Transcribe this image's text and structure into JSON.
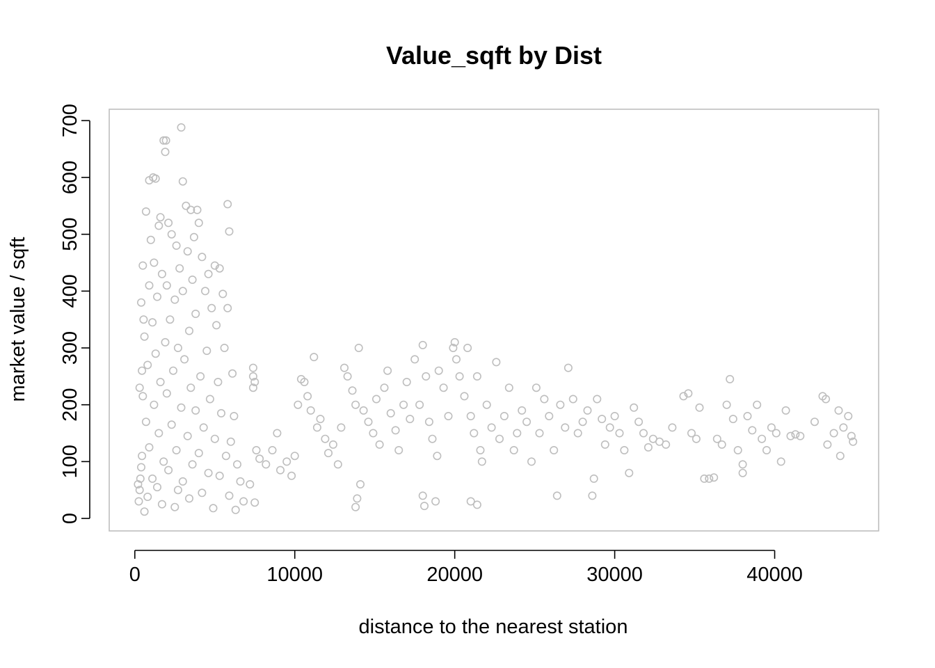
{
  "chart_data": {
    "type": "scatter",
    "title": "Value_sqft by Dist",
    "xlabel": "distance to the nearest station",
    "ylabel": "market value / sqft",
    "xlim": [
      -1600,
      46500
    ],
    "ylim": [
      -22,
      720
    ],
    "x_ticks": [
      0,
      10000,
      20000,
      30000,
      40000
    ],
    "x_tick_labels": [
      "0",
      "10000",
      "20000",
      "30000",
      "40000"
    ],
    "y_ticks": [
      0,
      100,
      200,
      300,
      400,
      500,
      600,
      700
    ],
    "y_tick_labels": [
      "0",
      "100",
      "200",
      "300",
      "400",
      "500",
      "600",
      "700"
    ],
    "marker": "open-circle",
    "point_color": "#bebebe",
    "grid": false,
    "legend": "none",
    "series": [
      {
        "points": [
          [
            2900,
            688
          ],
          [
            1800,
            665
          ],
          [
            1950,
            665
          ],
          [
            1900,
            645
          ],
          [
            3000,
            593
          ],
          [
            1150,
            600
          ],
          [
            1300,
            598
          ],
          [
            900,
            595
          ],
          [
            5800,
            553
          ],
          [
            5900,
            505
          ],
          [
            3200,
            550
          ],
          [
            3500,
            543
          ],
          [
            3900,
            543
          ],
          [
            2100,
            520
          ],
          [
            1500,
            515
          ],
          [
            4000,
            520
          ],
          [
            700,
            540
          ],
          [
            1600,
            530
          ],
          [
            2300,
            500
          ],
          [
            3700,
            495
          ],
          [
            1000,
            490
          ],
          [
            2600,
            480
          ],
          [
            3300,
            470
          ],
          [
            4200,
            460
          ],
          [
            1200,
            450
          ],
          [
            2800,
            440
          ],
          [
            5000,
            445
          ],
          [
            5300,
            440
          ],
          [
            4600,
            430
          ],
          [
            500,
            445
          ],
          [
            1700,
            430
          ],
          [
            3600,
            420
          ],
          [
            2000,
            410
          ],
          [
            900,
            410
          ],
          [
            4400,
            400
          ],
          [
            5500,
            395
          ],
          [
            3000,
            400
          ],
          [
            1400,
            390
          ],
          [
            2500,
            385
          ],
          [
            400,
            380
          ],
          [
            4800,
            370
          ],
          [
            5800,
            370
          ],
          [
            3800,
            360
          ],
          [
            2200,
            350
          ],
          [
            1100,
            345
          ],
          [
            5100,
            340
          ],
          [
            3400,
            330
          ],
          [
            600,
            320
          ],
          [
            1900,
            310
          ],
          [
            2700,
            300
          ],
          [
            4500,
            295
          ],
          [
            5600,
            300
          ],
          [
            1300,
            290
          ],
          [
            3100,
            280
          ],
          [
            800,
            270
          ],
          [
            2400,
            260
          ],
          [
            4100,
            250
          ],
          [
            5200,
            240
          ],
          [
            6100,
            255
          ],
          [
            1600,
            240
          ],
          [
            3500,
            230
          ],
          [
            2000,
            220
          ],
          [
            500,
            215
          ],
          [
            4700,
            210
          ],
          [
            1200,
            200
          ],
          [
            2900,
            195
          ],
          [
            3800,
            190
          ],
          [
            5400,
            185
          ],
          [
            6200,
            180
          ],
          [
            700,
            170
          ],
          [
            2300,
            165
          ],
          [
            4300,
            160
          ],
          [
            1500,
            150
          ],
          [
            3300,
            145
          ],
          [
            5000,
            140
          ],
          [
            6000,
            135
          ],
          [
            900,
            125
          ],
          [
            2600,
            120
          ],
          [
            4000,
            115
          ],
          [
            5700,
            110
          ],
          [
            1800,
            100
          ],
          [
            3600,
            95
          ],
          [
            6400,
            95
          ],
          [
            400,
            90
          ],
          [
            2100,
            85
          ],
          [
            4600,
            80
          ],
          [
            5300,
            75
          ],
          [
            1100,
            70
          ],
          [
            3000,
            65
          ],
          [
            6600,
            65
          ],
          [
            7200,
            60
          ],
          [
            1400,
            55
          ],
          [
            2700,
            50
          ],
          [
            4200,
            45
          ],
          [
            5900,
            40
          ],
          [
            800,
            38
          ],
          [
            3400,
            35
          ],
          [
            6800,
            30
          ],
          [
            7500,
            28
          ],
          [
            1700,
            25
          ],
          [
            2500,
            20
          ],
          [
            4900,
            18
          ],
          [
            6300,
            15
          ],
          [
            600,
            12
          ],
          [
            300,
            50
          ],
          [
            250,
            30
          ],
          [
            350,
            70
          ],
          [
            450,
            110
          ],
          [
            200,
            60
          ],
          [
            300,
            230
          ],
          [
            450,
            260
          ],
          [
            550,
            350
          ],
          [
            7400,
            265
          ],
          [
            7400,
            250
          ],
          [
            7500,
            240
          ],
          [
            7400,
            230
          ],
          [
            7600,
            120
          ],
          [
            7800,
            105
          ],
          [
            8200,
            95
          ],
          [
            8600,
            120
          ],
          [
            8900,
            150
          ],
          [
            9100,
            85
          ],
          [
            9500,
            100
          ],
          [
            9800,
            75
          ],
          [
            10000,
            110
          ],
          [
            10200,
            200
          ],
          [
            10400,
            245
          ],
          [
            10600,
            240
          ],
          [
            10800,
            215
          ],
          [
            11000,
            190
          ],
          [
            11200,
            284
          ],
          [
            11400,
            160
          ],
          [
            11600,
            175
          ],
          [
            11900,
            140
          ],
          [
            12100,
            115
          ],
          [
            12400,
            130
          ],
          [
            12700,
            95
          ],
          [
            12900,
            160
          ],
          [
            13100,
            265
          ],
          [
            13300,
            250
          ],
          [
            13600,
            225
          ],
          [
            13800,
            200
          ],
          [
            14000,
            300
          ],
          [
            14100,
            60
          ],
          [
            13900,
            35
          ],
          [
            13800,
            20
          ],
          [
            14300,
            190
          ],
          [
            14600,
            170
          ],
          [
            14900,
            150
          ],
          [
            15100,
            210
          ],
          [
            15300,
            130
          ],
          [
            15600,
            230
          ],
          [
            15800,
            260
          ],
          [
            16000,
            185
          ],
          [
            16300,
            155
          ],
          [
            16500,
            120
          ],
          [
            16800,
            200
          ],
          [
            17000,
            240
          ],
          [
            17200,
            175
          ],
          [
            17500,
            280
          ],
          [
            17800,
            200
          ],
          [
            18000,
            305
          ],
          [
            18200,
            250
          ],
          [
            18400,
            170
          ],
          [
            18600,
            140
          ],
          [
            18900,
            110
          ],
          [
            18000,
            40
          ],
          [
            18100,
            22
          ],
          [
            18800,
            30
          ],
          [
            19000,
            260
          ],
          [
            19300,
            230
          ],
          [
            19600,
            180
          ],
          [
            19900,
            300
          ],
          [
            20000,
            310
          ],
          [
            20100,
            280
          ],
          [
            20300,
            250
          ],
          [
            20600,
            215
          ],
          [
            20800,
            300
          ],
          [
            21000,
            180
          ],
          [
            21200,
            150
          ],
          [
            21400,
            250
          ],
          [
            21600,
            120
          ],
          [
            21700,
            100
          ],
          [
            21000,
            30
          ],
          [
            21400,
            24
          ],
          [
            22000,
            200
          ],
          [
            22300,
            160
          ],
          [
            22600,
            275
          ],
          [
            22800,
            140
          ],
          [
            23100,
            180
          ],
          [
            23400,
            230
          ],
          [
            23700,
            120
          ],
          [
            23900,
            150
          ],
          [
            24200,
            190
          ],
          [
            24500,
            170
          ],
          [
            24800,
            100
          ],
          [
            25100,
            230
          ],
          [
            25300,
            150
          ],
          [
            25600,
            210
          ],
          [
            25900,
            180
          ],
          [
            26200,
            120
          ],
          [
            26400,
            40
          ],
          [
            26600,
            200
          ],
          [
            26900,
            160
          ],
          [
            27100,
            265
          ],
          [
            27400,
            210
          ],
          [
            27700,
            150
          ],
          [
            28000,
            170
          ],
          [
            28300,
            190
          ],
          [
            28600,
            40
          ],
          [
            28700,
            70
          ],
          [
            28900,
            210
          ],
          [
            29200,
            175
          ],
          [
            29400,
            130
          ],
          [
            29700,
            160
          ],
          [
            30000,
            180
          ],
          [
            30300,
            150
          ],
          [
            30600,
            120
          ],
          [
            30900,
            80
          ],
          [
            31200,
            195
          ],
          [
            31500,
            170
          ],
          [
            31800,
            150
          ],
          [
            32100,
            125
          ],
          [
            32400,
            140
          ],
          [
            32800,
            135
          ],
          [
            33200,
            130
          ],
          [
            33600,
            160
          ],
          [
            34300,
            215
          ],
          [
            34600,
            220
          ],
          [
            34800,
            150
          ],
          [
            35100,
            140
          ],
          [
            35300,
            195
          ],
          [
            35600,
            70
          ],
          [
            35900,
            70
          ],
          [
            36200,
            72
          ],
          [
            36400,
            140
          ],
          [
            36700,
            130
          ],
          [
            37000,
            200
          ],
          [
            37200,
            245
          ],
          [
            37400,
            175
          ],
          [
            37700,
            120
          ],
          [
            38000,
            95
          ],
          [
            38000,
            80
          ],
          [
            38300,
            180
          ],
          [
            38600,
            155
          ],
          [
            38900,
            200
          ],
          [
            39200,
            140
          ],
          [
            39500,
            120
          ],
          [
            39800,
            160
          ],
          [
            40100,
            150
          ],
          [
            40400,
            100
          ],
          [
            40700,
            190
          ],
          [
            41000,
            145
          ],
          [
            41300,
            148
          ],
          [
            41600,
            145
          ],
          [
            42500,
            170
          ],
          [
            43000,
            215
          ],
          [
            43200,
            210
          ],
          [
            43300,
            130
          ],
          [
            43700,
            150
          ],
          [
            44000,
            190
          ],
          [
            44100,
            110
          ],
          [
            44300,
            160
          ],
          [
            44600,
            180
          ],
          [
            44900,
            135
          ],
          [
            44800,
            145
          ]
        ]
      }
    ]
  }
}
